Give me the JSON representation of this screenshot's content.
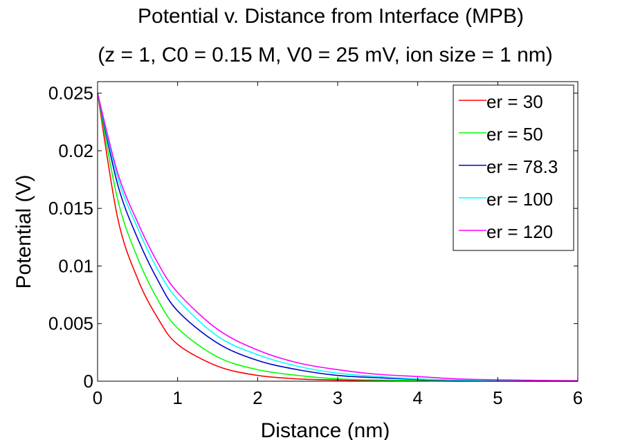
{
  "chart_data": {
    "type": "line",
    "title": "Potential v. Distance from Interface (MPB)",
    "subtitle": "(z = 1, C0 = 0.15 M, V0 = 25 mV, ion size = 1 nm)",
    "xlabel": "Distance (nm)",
    "ylabel": "Potential (V)",
    "xlim": [
      0,
      6
    ],
    "ylim": [
      0,
      0.026
    ],
    "xticks": [
      0,
      1,
      2,
      3,
      4,
      5,
      6
    ],
    "xtick_labels": [
      "0",
      "1",
      "2",
      "3",
      "4",
      "5",
      "6"
    ],
    "yticks": [
      0,
      0.005,
      0.01,
      0.015,
      0.02,
      0.025
    ],
    "ytick_labels": [
      "0",
      "0.005",
      "0.01",
      "0.015",
      "0.02",
      "0.025"
    ],
    "grid": false,
    "legend_position": "top-right",
    "x": [
      0,
      0.25,
      0.5,
      0.75,
      1,
      1.5,
      2,
      2.5,
      3,
      3.5,
      4,
      4.5,
      5,
      5.5,
      6
    ],
    "series": [
      {
        "name": "er = 30",
        "color": "#ff0000",
        "values": [
          0.025,
          0.0142,
          0.0089,
          0.0055,
          0.0032,
          0.0013,
          0.0005,
          0.0002,
          0.0001,
          4e-05,
          2e-05,
          1e-05,
          0.0,
          0.0,
          0.0
        ]
      },
      {
        "name": "er = 50",
        "color": "#00ff00",
        "values": [
          0.025,
          0.0158,
          0.0107,
          0.0071,
          0.0046,
          0.0021,
          0.001,
          0.0005,
          0.0002,
          0.0001,
          5e-05,
          2e-05,
          1e-05,
          0.0,
          0.0
        ]
      },
      {
        "name": "er = 78.3",
        "color": "#0000cc",
        "values": [
          0.025,
          0.0171,
          0.0124,
          0.0088,
          0.0061,
          0.0033,
          0.0018,
          0.001,
          0.0005,
          0.0003,
          0.00015,
          8e-05,
          4e-05,
          2e-05,
          1e-05
        ]
      },
      {
        "name": "er = 100",
        "color": "#00ffff",
        "values": [
          0.025,
          0.0177,
          0.0133,
          0.0097,
          0.0071,
          0.0039,
          0.0023,
          0.0013,
          0.0007,
          0.0004,
          0.0002,
          0.0001,
          6e-05,
          3e-05,
          2e-05
        ]
      },
      {
        "name": "er = 120",
        "color": "#ff00ff",
        "values": [
          0.025,
          0.0181,
          0.0138,
          0.0103,
          0.0077,
          0.0045,
          0.0027,
          0.0016,
          0.001,
          0.0006,
          0.0004,
          0.0002,
          0.00012,
          7e-05,
          4e-05
        ]
      }
    ]
  }
}
